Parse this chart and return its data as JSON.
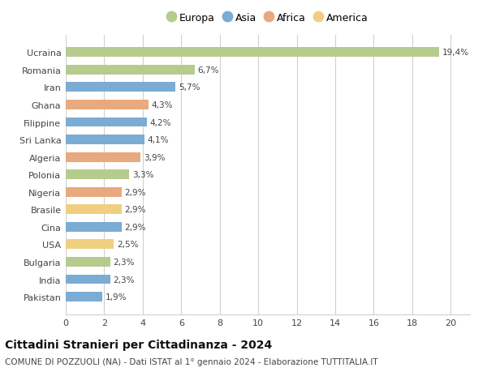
{
  "countries": [
    "Ucraina",
    "Romania",
    "Iran",
    "Ghana",
    "Filippine",
    "Sri Lanka",
    "Algeria",
    "Polonia",
    "Nigeria",
    "Brasile",
    "Cina",
    "USA",
    "Bulgaria",
    "India",
    "Pakistan"
  ],
  "values": [
    19.4,
    6.7,
    5.7,
    4.3,
    4.2,
    4.1,
    3.9,
    3.3,
    2.9,
    2.9,
    2.9,
    2.5,
    2.3,
    2.3,
    1.9
  ],
  "labels": [
    "19,4%",
    "6,7%",
    "5,7%",
    "4,3%",
    "4,2%",
    "4,1%",
    "3,9%",
    "3,3%",
    "2,9%",
    "2,9%",
    "2,9%",
    "2,5%",
    "2,3%",
    "2,3%",
    "1,9%"
  ],
  "continents": [
    "Europa",
    "Europa",
    "Asia",
    "Africa",
    "Asia",
    "Asia",
    "Africa",
    "Europa",
    "Africa",
    "America",
    "Asia",
    "America",
    "Europa",
    "Asia",
    "Asia"
  ],
  "colors": {
    "Europa": "#b5cc8e",
    "Asia": "#7bacd4",
    "Africa": "#e8a97e",
    "America": "#f0d080"
  },
  "legend_order": [
    "Europa",
    "Asia",
    "Africa",
    "America"
  ],
  "title": "Cittadini Stranieri per Cittadinanza - 2024",
  "subtitle": "COMUNE DI POZZUOLI (NA) - Dati ISTAT al 1° gennaio 2024 - Elaborazione TUTTITALIA.IT",
  "xlim": [
    0,
    21
  ],
  "xticks": [
    0,
    2,
    4,
    6,
    8,
    10,
    12,
    14,
    16,
    18,
    20
  ],
  "background_color": "#ffffff",
  "grid_color": "#d0d0d0"
}
